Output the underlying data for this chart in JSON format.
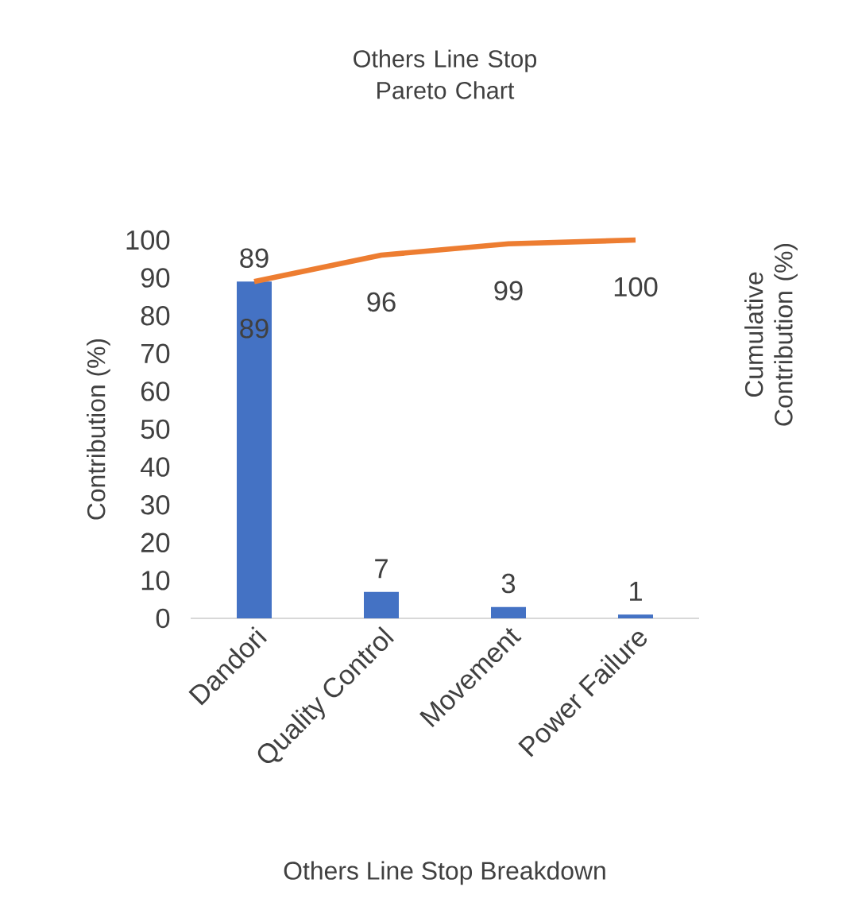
{
  "chart_data": {
    "type": "bar",
    "title": "Others Line Stop Pareto Chart",
    "xlabel": "Others Line Stop Breakdown",
    "ylabel": "Contribution (%)",
    "y2label": "Cumulative Contribution (%)",
    "categories": [
      "Dandori",
      "Quality Control",
      "Movement",
      "Power Failure"
    ],
    "series": [
      {
        "color": "#4472c4",
        "values": [
          89,
          7,
          3,
          1
        ]
      },
      {
        "type": "line",
        "color": "#ed7d31",
        "values": [
          89,
          96,
          99,
          100
        ]
      }
    ],
    "ylim": [
      0,
      100
    ],
    "yticks": [
      0,
      10,
      20,
      30,
      40,
      50,
      60,
      70,
      80,
      90,
      100
    ],
    "data_labels": true
  }
}
